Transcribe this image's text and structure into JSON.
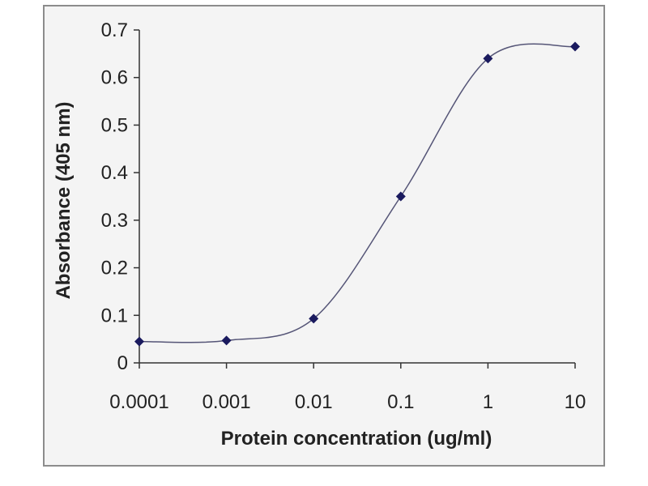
{
  "chart_data": {
    "type": "line",
    "title": "",
    "xlabel": "Protein concentration (ug/ml)",
    "ylabel": "Absorbance (405 nm)",
    "x_scale": "log",
    "x_ticks": [
      "0.0001",
      "0.001",
      "0.01",
      "0.1",
      "1",
      "10"
    ],
    "y_ticks": [
      "0",
      "0.1",
      "0.2",
      "0.3",
      "0.4",
      "0.5",
      "0.6",
      "0.7"
    ],
    "xlim": [
      0.0001,
      10
    ],
    "ylim": [
      0,
      0.7
    ],
    "grid": false,
    "legend": "none",
    "series": [
      {
        "x": [
          0.0001,
          0.001,
          0.01,
          0.1,
          1,
          10
        ],
        "y": [
          0.045,
          0.047,
          0.093,
          0.35,
          0.64,
          0.665
        ],
        "color": "#1a1a5e",
        "line_color": "#555577",
        "marker": "diamond",
        "smooth": true
      }
    ]
  }
}
